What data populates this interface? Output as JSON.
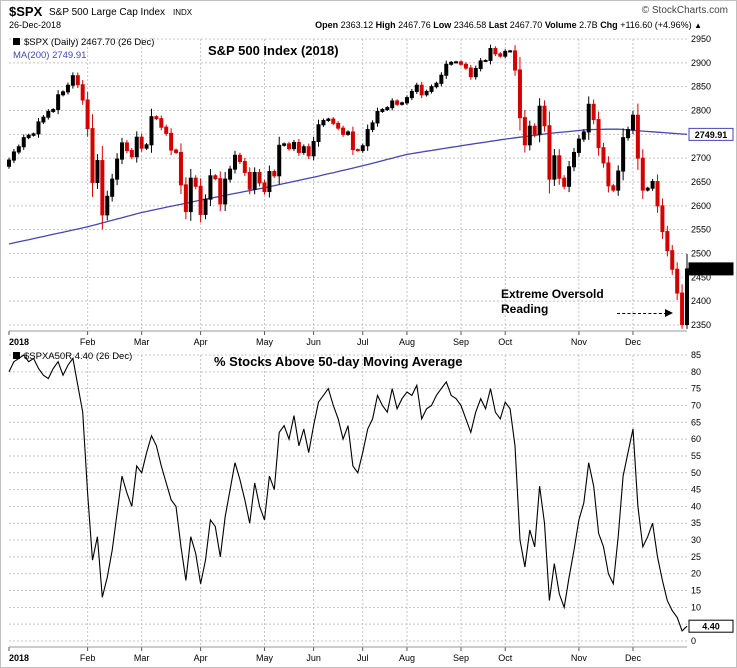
{
  "header": {
    "symbol": "$SPX",
    "name": "S&P 500 Large Cap Index",
    "exchange": "INDX",
    "credit": "© StockCharts.com",
    "date": "26-Dec-2018",
    "quote": [
      {
        "label": "Open",
        "value": "2363.12"
      },
      {
        "label": "High",
        "value": "2467.76"
      },
      {
        "label": "Low",
        "value": "2346.58"
      },
      {
        "label": "Last",
        "value": "2467.70"
      },
      {
        "label": "Volume",
        "value": "2.7B"
      },
      {
        "label": "Chg",
        "value": "+116.60 (+4.96%)"
      }
    ],
    "chg_arrow": "▲"
  },
  "chart1": {
    "legend_symbol": "$SPX (Daily) 2467.70 (26 Dec)",
    "legend_ma": "MA(200) 2749.91",
    "title": "S&P 500 Index (2018)",
    "annotation_line1": "Extreme Oversold",
    "annotation_line2": "Reading"
  },
  "chart2": {
    "legend": "$SPXA50R 4.40 (26 Dec)",
    "title": "% Stocks Above 50-day Moving Average"
  },
  "chart_data": [
    {
      "type": "candlestick",
      "title": "S&P 500 Index (2018)",
      "ylim": [
        2350,
        2950
      ],
      "ytick": 50,
      "x_labels": [
        "2018",
        "Feb",
        "Mar",
        "Apr",
        "May",
        "Jun",
        "Jul",
        "Aug",
        "Sep",
        "Oct",
        "Nov",
        "Dec"
      ],
      "month_start_idx": [
        0,
        16,
        27,
        39,
        52,
        62,
        72,
        81,
        92,
        101,
        116,
        127
      ],
      "open_first": 2683,
      "closes": [
        2696,
        2713,
        2724,
        2743,
        2748,
        2751,
        2776,
        2786,
        2798,
        2802,
        2833,
        2839,
        2853,
        2873,
        2854,
        2822,
        2762,
        2649,
        2695,
        2581,
        2620,
        2656,
        2698,
        2732,
        2716,
        2703,
        2744,
        2721,
        2728,
        2787,
        2783,
        2765,
        2752,
        2717,
        2712,
        2644,
        2588,
        2658,
        2641,
        2582,
        2614,
        2663,
        2657,
        2604,
        2656,
        2677,
        2706,
        2693,
        2670,
        2635,
        2670,
        2648,
        2630,
        2672,
        2663,
        2727,
        2730,
        2720,
        2733,
        2712,
        2724,
        2705,
        2735,
        2770,
        2779,
        2782,
        2773,
        2763,
        2750,
        2755,
        2718,
        2716,
        2726,
        2760,
        2774,
        2798,
        2802,
        2806,
        2820,
        2813,
        2816,
        2827,
        2840,
        2853,
        2833,
        2840,
        2850,
        2857,
        2874,
        2897,
        2901,
        2902,
        2897,
        2889,
        2871,
        2888,
        2904,
        2905,
        2930,
        2919,
        2914,
        2924,
        2925,
        2885,
        2785,
        2728,
        2767,
        2750,
        2809,
        2768,
        2656,
        2705,
        2658,
        2641,
        2682,
        2712,
        2740,
        2755,
        2813,
        2781,
        2722,
        2690,
        2642,
        2633,
        2673,
        2743,
        2760,
        2790,
        2700,
        2633,
        2637,
        2651,
        2600,
        2546,
        2506,
        2467,
        2417,
        2351,
        2467.7
      ],
      "ma200_anchors": [
        [
          0,
          2520
        ],
        [
          16,
          2556
        ],
        [
          27,
          2586
        ],
        [
          39,
          2612
        ],
        [
          52,
          2638
        ],
        [
          62,
          2660
        ],
        [
          72,
          2684
        ],
        [
          81,
          2708
        ],
        [
          92,
          2726
        ],
        [
          101,
          2740
        ],
        [
          110,
          2752
        ],
        [
          118,
          2760
        ],
        [
          124,
          2761
        ],
        [
          130,
          2756
        ],
        [
          138,
          2750
        ]
      ],
      "last_value": 2467.7,
      "last_label": "2467.70",
      "ma_value": 2749.91,
      "ma_label": "2749.91",
      "colors": {
        "up": "#000000",
        "down": "#d40000",
        "ma": "#4646b4",
        "grid": "#c4c4c4",
        "last_box_bg": "#000000",
        "last_box_text": "#ffffff"
      }
    },
    {
      "type": "line",
      "title": "% Stocks Above 50-day Moving Average",
      "ylim": [
        0,
        85
      ],
      "ytick": 5,
      "x_labels": [
        "2018",
        "Feb",
        "Mar",
        "Apr",
        "May",
        "Jun",
        "Jul",
        "Aug",
        "Sep",
        "Oct",
        "Nov",
        "Dec"
      ],
      "month_start_idx": [
        0,
        16,
        27,
        39,
        52,
        62,
        72,
        81,
        92,
        101,
        116,
        127
      ],
      "values": [
        80,
        83,
        84,
        85,
        83,
        84,
        81,
        79,
        78,
        81,
        83,
        79,
        82,
        84,
        76,
        68,
        44,
        24,
        31,
        13,
        19,
        27,
        38,
        49,
        44,
        40,
        52,
        50,
        56,
        61,
        58,
        52,
        47,
        42,
        40,
        28,
        18,
        31,
        26,
        17,
        24,
        36,
        34,
        25,
        37,
        45,
        53,
        48,
        42,
        35,
        47,
        40,
        36,
        49,
        45,
        62,
        64,
        60,
        67,
        58,
        63,
        56,
        64,
        71,
        73,
        75,
        70,
        66,
        60,
        64,
        52,
        50,
        56,
        63,
        66,
        73,
        70,
        68,
        75,
        69,
        72,
        74,
        73,
        76,
        66,
        69,
        70,
        73,
        75,
        77,
        73,
        72,
        70,
        66,
        62,
        68,
        72,
        69,
        75,
        68,
        66,
        71,
        69,
        58,
        30,
        22,
        33,
        28,
        46,
        35,
        12,
        23,
        14,
        10,
        19,
        27,
        36,
        41,
        53,
        46,
        32,
        28,
        20,
        17,
        31,
        49,
        56,
        63,
        40,
        28,
        31,
        35,
        25,
        18,
        12,
        9,
        7,
        3,
        4.4
      ],
      "last_value": 4.4,
      "last_label": "4.40",
      "colors": {
        "line": "#000000",
        "grid": "#c4c4c4"
      }
    }
  ]
}
